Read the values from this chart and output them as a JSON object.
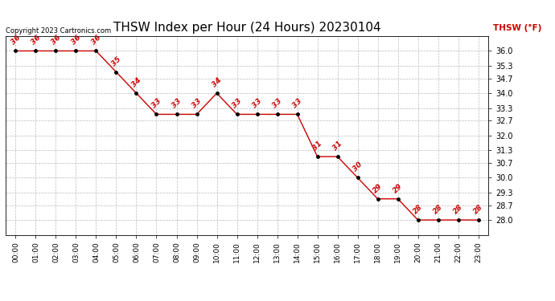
{
  "title": "THSW Index per Hour (24 Hours) 20230104",
  "copyright": "Copyright 2023 Cartronics.com",
  "ylabel": "THSW (°F)",
  "hours": [
    0,
    1,
    2,
    3,
    4,
    5,
    6,
    7,
    8,
    9,
    10,
    11,
    12,
    13,
    14,
    15,
    16,
    17,
    18,
    19,
    20,
    21,
    22,
    23
  ],
  "hour_labels": [
    "00:00",
    "01:00",
    "02:00",
    "03:00",
    "04:00",
    "05:00",
    "06:00",
    "07:00",
    "08:00",
    "09:00",
    "10:00",
    "11:00",
    "12:00",
    "13:00",
    "14:00",
    "15:00",
    "16:00",
    "17:00",
    "18:00",
    "19:00",
    "20:00",
    "21:00",
    "22:00",
    "23:00"
  ],
  "values": [
    36,
    36,
    36,
    36,
    36,
    35,
    34,
    33,
    33,
    33,
    34,
    33,
    33,
    33,
    33,
    31,
    31,
    30,
    29,
    29,
    28,
    28,
    28,
    28
  ],
  "ylim_min": 27.3,
  "ylim_max": 36.7,
  "yticks": [
    28.0,
    28.7,
    29.3,
    30.0,
    30.7,
    31.3,
    32.0,
    32.7,
    33.3,
    34.0,
    34.7,
    35.3,
    36.0
  ],
  "line_color": "#cc0000",
  "marker_color": "#000000",
  "label_color": "#cc0000",
  "grid_color": "#bbbbbb",
  "bg_color": "#ffffff",
  "title_fontsize": 11,
  "copyright_fontsize": 6,
  "legend_color": "#cc0000"
}
